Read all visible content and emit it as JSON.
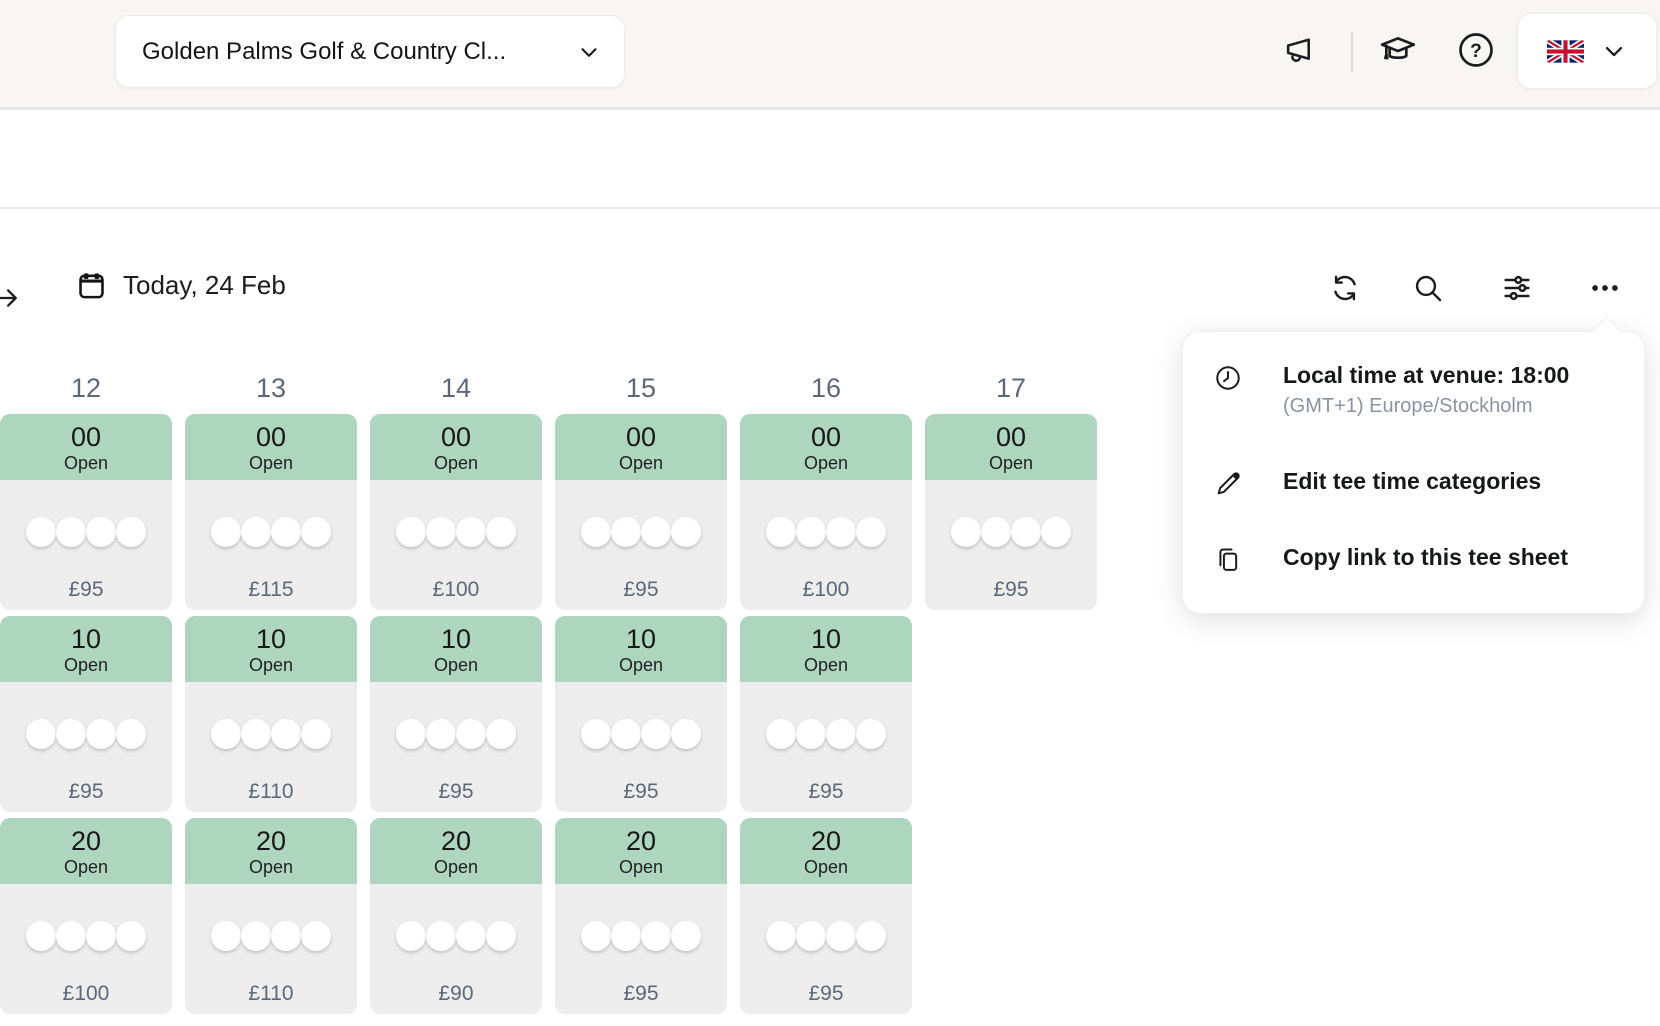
{
  "topbar": {
    "club_selector_label": "Golden Palms Golf & Country Cl...",
    "icons": [
      "megaphone-icon",
      "graduation-cap-icon",
      "help-icon"
    ],
    "language": {
      "flag": "united-kingdom-flag"
    }
  },
  "toolbar": {
    "date_label": "Today, 24 Feb",
    "action_icons": [
      "refresh-icon",
      "search-icon",
      "filter-icon",
      "more-icon"
    ]
  },
  "menu": {
    "local_time_title": "Local time at venue: 18:00",
    "local_time_subtitle": "(GMT+1) Europe/Stockholm",
    "edit_label": "Edit tee time categories",
    "copy_label": "Copy link to this tee sheet",
    "item_icons": [
      "clock-icon",
      "pencil-icon",
      "copy-icon"
    ]
  },
  "tee_sheet": {
    "player_slots_per_tee_time": 4,
    "columns": [
      {
        "hour": "12",
        "slots": [
          {
            "minute": "00",
            "status": "Open",
            "price": "£95"
          },
          {
            "minute": "10",
            "status": "Open",
            "price": "£95"
          },
          {
            "minute": "20",
            "status": "Open",
            "price": "£100"
          }
        ]
      },
      {
        "hour": "13",
        "slots": [
          {
            "minute": "00",
            "status": "Open",
            "price": "£115"
          },
          {
            "minute": "10",
            "status": "Open",
            "price": "£110"
          },
          {
            "minute": "20",
            "status": "Open",
            "price": "£110"
          }
        ]
      },
      {
        "hour": "14",
        "slots": [
          {
            "minute": "00",
            "status": "Open",
            "price": "£100"
          },
          {
            "minute": "10",
            "status": "Open",
            "price": "£95"
          },
          {
            "minute": "20",
            "status": "Open",
            "price": "£90"
          }
        ]
      },
      {
        "hour": "15",
        "slots": [
          {
            "minute": "00",
            "status": "Open",
            "price": "£95"
          },
          {
            "minute": "10",
            "status": "Open",
            "price": "£95"
          },
          {
            "minute": "20",
            "status": "Open",
            "price": "£95"
          }
        ]
      },
      {
        "hour": "16",
        "slots": [
          {
            "minute": "00",
            "status": "Open",
            "price": "£100"
          },
          {
            "minute": "10",
            "status": "Open",
            "price": "£95"
          },
          {
            "minute": "20",
            "status": "Open",
            "price": "£95"
          }
        ]
      },
      {
        "hour": "17",
        "slots": [
          {
            "minute": "00",
            "status": "Open",
            "price": "£95"
          }
        ]
      }
    ]
  },
  "colors": {
    "topbar_bg": "#f7f6f2",
    "slot_open_header": "#aed6be",
    "slot_body": "#ededed",
    "accent_text": "#5c6879",
    "subtitle_text": "#8a93a3"
  }
}
